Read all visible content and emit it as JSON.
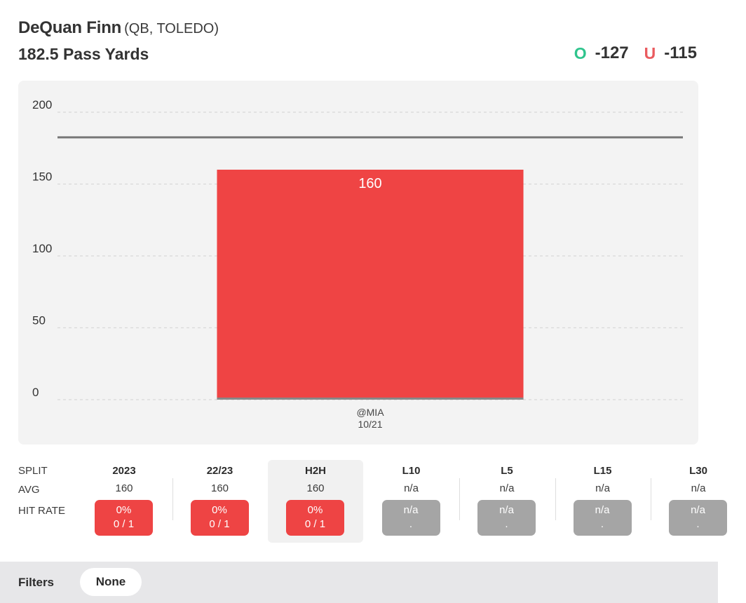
{
  "header": {
    "player_name": "DeQuan Finn",
    "player_meta": "(QB, TOLEDO)",
    "prop_line": "182.5 Pass Yards",
    "over_letter": "O",
    "over_odds": "-127",
    "under_letter": "U",
    "under_odds": "-115"
  },
  "chart_data": {
    "type": "bar",
    "categories": [
      "@MIA\n10/21"
    ],
    "values": [
      160
    ],
    "ylim": [
      0,
      200
    ],
    "yticks": [
      0,
      50,
      100,
      150,
      200
    ],
    "threshold": 182.5,
    "bar_color": "#ef4444",
    "threshold_color": "#777777",
    "grid": true,
    "data_labels": [
      "160"
    ]
  },
  "splits": {
    "row_labels": [
      "SPLIT",
      "AVG",
      "HIT RATE"
    ],
    "columns": [
      {
        "label": "2023",
        "avg": "160",
        "pct": "0%",
        "record": "0 / 1",
        "status": "miss",
        "active": false
      },
      {
        "label": "22/23",
        "avg": "160",
        "pct": "0%",
        "record": "0 / 1",
        "status": "miss",
        "active": false
      },
      {
        "label": "H2H",
        "avg": "160",
        "pct": "0%",
        "record": "0 / 1",
        "status": "miss",
        "active": true
      },
      {
        "label": "L10",
        "avg": "n/a",
        "pct": "n/a",
        "record": ".",
        "status": "na",
        "active": false
      },
      {
        "label": "L5",
        "avg": "n/a",
        "pct": "n/a",
        "record": ".",
        "status": "na",
        "active": false
      },
      {
        "label": "L15",
        "avg": "n/a",
        "pct": "n/a",
        "record": ".",
        "status": "na",
        "active": false
      },
      {
        "label": "L30",
        "avg": "n/a",
        "pct": "n/a",
        "record": ".",
        "status": "na",
        "active": false
      }
    ]
  },
  "filters": {
    "label": "Filters",
    "value": "None"
  },
  "colors": {
    "over": "#2fc48d",
    "under": "#ea5b5f",
    "miss": "#ee4444",
    "na": "#a5a5a5"
  }
}
